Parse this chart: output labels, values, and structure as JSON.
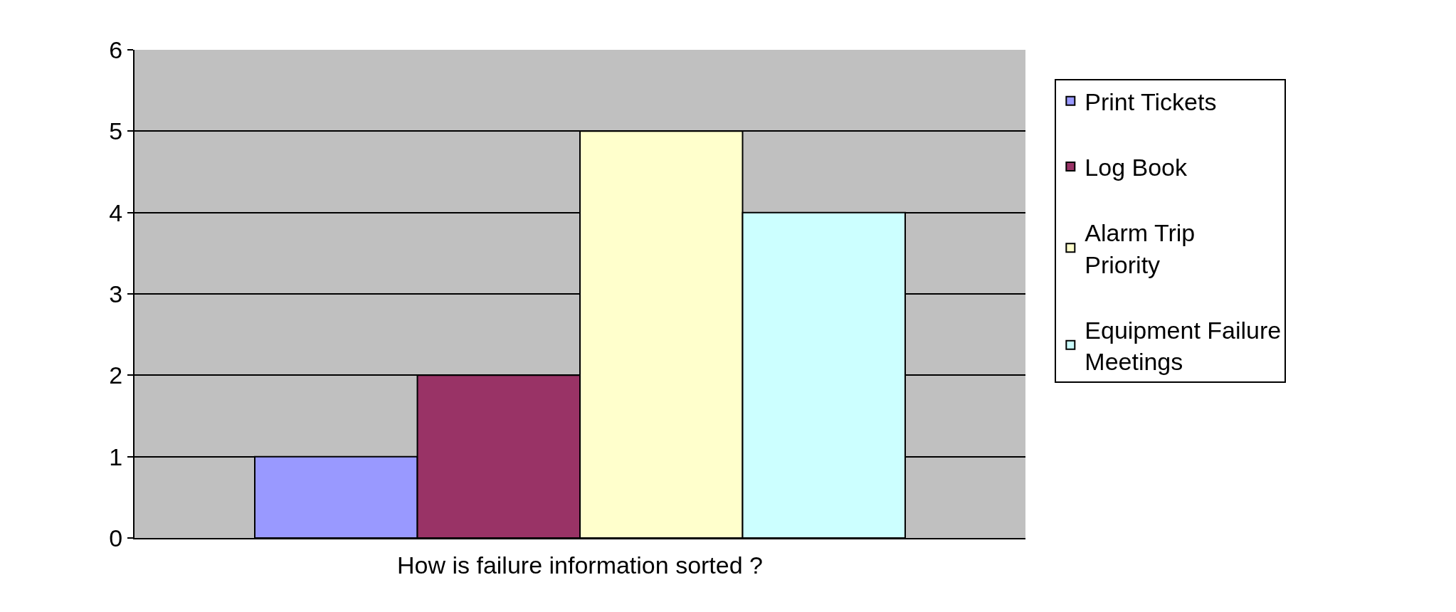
{
  "chart_data": {
    "type": "bar",
    "xlabel": "How is failure information sorted ?",
    "categories": [
      null
    ],
    "series": [
      {
        "name": "Print Tickets",
        "color": "#9999ff",
        "values": [
          1
        ]
      },
      {
        "name": "Log Book",
        "color": "#993366",
        "values": [
          2
        ]
      },
      {
        "name": "Alarm Trip Priority",
        "color": "#ffffcc",
        "values": [
          5
        ]
      },
      {
        "name": "Equipment Failure Meetings",
        "color": "#ccffff",
        "values": [
          4
        ]
      }
    ],
    "ylim": [
      0,
      6
    ],
    "yticks": [
      0,
      1,
      2,
      3,
      4,
      5,
      6
    ],
    "grid": "y",
    "legend": "right",
    "tick_labels": "y"
  }
}
